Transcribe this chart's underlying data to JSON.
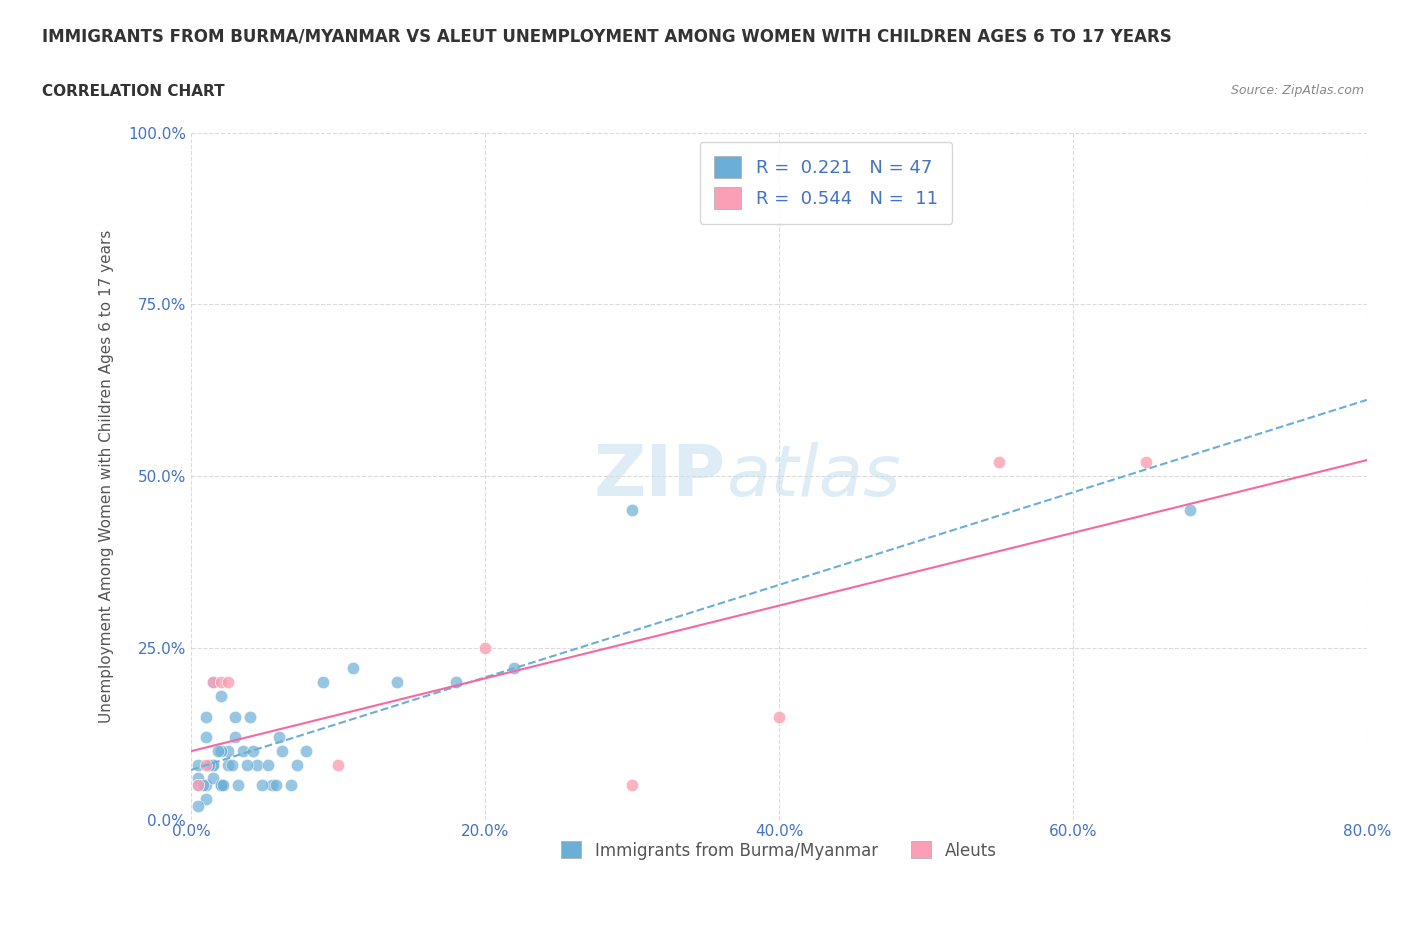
{
  "title": "IMMIGRANTS FROM BURMA/MYANMAR VS ALEUT UNEMPLOYMENT AMONG WOMEN WITH CHILDREN AGES 6 TO 17 YEARS",
  "subtitle": "CORRELATION CHART",
  "source": "Source: ZipAtlas.com",
  "xlabel": "Immigrants from Burma/Myanmar",
  "ylabel": "Unemployment Among Women with Children Ages 6 to 17 years",
  "xlim": [
    0.0,
    0.8
  ],
  "ylim": [
    0.0,
    1.0
  ],
  "xticks": [
    0.0,
    0.2,
    0.4,
    0.6,
    0.8
  ],
  "xticklabels": [
    "0.0%",
    "20.0%",
    "40.0%",
    "60.0%",
    "80.0%"
  ],
  "yticks": [
    0.0,
    0.25,
    0.5,
    0.75,
    1.0
  ],
  "yticklabels": [
    "0.0%",
    "25.0%",
    "50.0%",
    "75.0%",
    "100.0%"
  ],
  "blue_color": "#6baed6",
  "pink_color": "#fa9fb5",
  "blue_line_color": "#6baed6",
  "pink_line_color": "#f768a1",
  "R_blue": 0.221,
  "N_blue": 47,
  "R_pink": 0.544,
  "N_pink": 11,
  "blue_scatter_x": [
    0.02,
    0.015,
    0.025,
    0.01,
    0.005,
    0.03,
    0.02,
    0.015,
    0.01,
    0.005,
    0.04,
    0.03,
    0.02,
    0.025,
    0.015,
    0.01,
    0.005,
    0.035,
    0.045,
    0.055,
    0.06,
    0.02,
    0.015,
    0.01,
    0.005,
    0.008,
    0.012,
    0.018,
    0.022,
    0.028,
    0.032,
    0.038,
    0.042,
    0.048,
    0.052,
    0.058,
    0.062,
    0.068,
    0.072,
    0.078,
    0.09,
    0.11,
    0.14,
    0.18,
    0.22,
    0.3,
    0.68
  ],
  "blue_scatter_y": [
    0.05,
    0.08,
    0.1,
    0.12,
    0.06,
    0.15,
    0.18,
    0.2,
    0.05,
    0.08,
    0.15,
    0.12,
    0.1,
    0.08,
    0.06,
    0.15,
    0.05,
    0.1,
    0.08,
    0.05,
    0.12,
    0.05,
    0.08,
    0.03,
    0.02,
    0.05,
    0.08,
    0.1,
    0.05,
    0.08,
    0.05,
    0.08,
    0.1,
    0.05,
    0.08,
    0.05,
    0.1,
    0.05,
    0.08,
    0.1,
    0.2,
    0.22,
    0.2,
    0.2,
    0.22,
    0.45,
    0.45
  ],
  "pink_scatter_x": [
    0.005,
    0.01,
    0.015,
    0.02,
    0.025,
    0.2,
    0.4,
    0.55,
    0.65,
    0.1,
    0.3
  ],
  "pink_scatter_y": [
    0.05,
    0.08,
    0.2,
    0.2,
    0.2,
    0.25,
    0.15,
    0.52,
    0.52,
    0.08,
    0.05
  ]
}
